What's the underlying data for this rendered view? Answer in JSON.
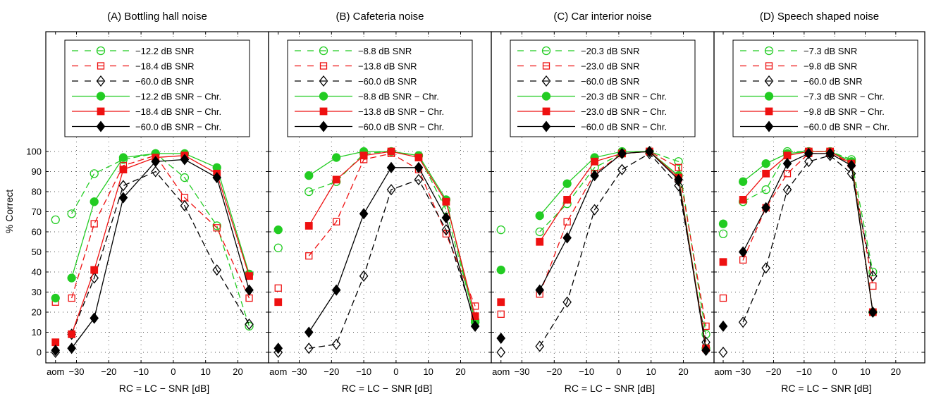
{
  "figure": {
    "ylabel": "% Correct",
    "xlabel": "RC = LC − SNR [dB]",
    "y_ticks": [
      0,
      10,
      20,
      30,
      40,
      50,
      60,
      70,
      80,
      90,
      100
    ],
    "x_ticks": [
      "aom",
      "−30",
      "−20",
      "−10",
      "0",
      "10",
      "20"
    ],
    "x_tick_values": [
      -30,
      -20,
      -10,
      0,
      10,
      20
    ],
    "ylim": [
      -3,
      103
    ],
    "xlim": [
      -39.5,
      29.5
    ],
    "aom_x": -36.5,
    "grid": "dotted"
  },
  "chart_data": [
    {
      "type": "line",
      "title": "(A) Bottling hall noise",
      "legend": [
        "−12.2 dB SNR",
        "−18.4 dB SNR",
        "−60.0 dB SNR",
        "−12.2 dB SNR − Chr.",
        "−18.4 dB SNR − Chr.",
        "−60.0 dB SNR − Chr."
      ],
      "series": [
        {
          "name": "−12.2 dB SNR",
          "color": "#22cc22",
          "marker": "circle-open",
          "dash": "dashed",
          "aom": 66,
          "x": [
            -31.5,
            -24.5,
            -15.5,
            -5.5,
            3.5,
            13.5,
            23.5
          ],
          "y": [
            69,
            89,
            96,
            99,
            87,
            63,
            13
          ]
        },
        {
          "name": "−18.4 dB SNR",
          "color": "#ee1111",
          "marker": "square-open",
          "dash": "dashed",
          "aom": 25,
          "x": [
            -31.5,
            -24.5,
            -15.5,
            -5.5,
            3.5,
            13.5,
            23.5
          ],
          "y": [
            27,
            64,
            93,
            98,
            77,
            62,
            27
          ]
        },
        {
          "name": "−60.0 dB SNR",
          "color": "#000000",
          "marker": "diamond-open",
          "dash": "dashed",
          "aom": 0,
          "x": [
            -31.5,
            -24.5,
            -15.5,
            -5.5,
            3.5,
            13.5,
            23.5
          ],
          "y": [
            9,
            37,
            83,
            90,
            73,
            41,
            14
          ]
        },
        {
          "name": "−12.2 dB SNR − Chr.",
          "color": "#22cc22",
          "marker": "circle-filled",
          "dash": "solid",
          "aom": 27,
          "x": [
            -31.5,
            -24.5,
            -15.5,
            -5.5,
            3.5,
            13.5,
            23.5
          ],
          "y": [
            37,
            75,
            97,
            99,
            99,
            92,
            39
          ]
        },
        {
          "name": "−18.4 dB SNR − Chr.",
          "color": "#ee1111",
          "marker": "square-filled",
          "dash": "solid",
          "aom": 5,
          "x": [
            -31.5,
            -24.5,
            -15.5,
            -5.5,
            3.5,
            13.5,
            23.5
          ],
          "y": [
            9,
            41,
            91,
            97,
            98,
            89,
            38
          ]
        },
        {
          "name": "−60.0 dB SNR − Chr.",
          "color": "#000000",
          "marker": "diamond-filled",
          "dash": "solid",
          "aom": 1,
          "x": [
            -31.5,
            -24.5,
            -15.5,
            -5.5,
            3.5,
            13.5,
            23.5
          ],
          "y": [
            2,
            17,
            77,
            95,
            96,
            87,
            31
          ]
        }
      ]
    },
    {
      "type": "line",
      "title": "(B) Cafeteria noise",
      "legend": [
        "−8.8 dB SNR",
        "−13.8 dB SNR",
        "−60.0 dB SNR",
        "−8.8 dB SNR − Chr.",
        "−13.8 dB SNR − Chr.",
        "−60.0 dB SNR − Chr."
      ],
      "series": [
        {
          "name": "−8.8 dB SNR",
          "color": "#22cc22",
          "marker": "circle-open",
          "dash": "dashed",
          "aom": 52,
          "x": [
            -27,
            -18.5,
            -10,
            -1.5,
            7,
            15.5,
            24.5
          ],
          "y": [
            80,
            85,
            99,
            100,
            98,
            71,
            16
          ]
        },
        {
          "name": "−13.8 dB SNR",
          "color": "#ee1111",
          "marker": "square-open",
          "dash": "dashed",
          "aom": 32,
          "x": [
            -27,
            -18.5,
            -10,
            -1.5,
            7,
            15.5,
            24.5
          ],
          "y": [
            48,
            65,
            96,
            99,
            91,
            59,
            23
          ]
        },
        {
          "name": "−60.0 dB SNR",
          "color": "#000000",
          "marker": "diamond-open",
          "dash": "dashed",
          "aom": 0,
          "x": [
            -27,
            -18.5,
            -10,
            -1.5,
            7,
            15.5,
            24.5
          ],
          "y": [
            2,
            4,
            38,
            81,
            86,
            61,
            15
          ]
        },
        {
          "name": "−8.8 dB SNR − Chr.",
          "color": "#22cc22",
          "marker": "circle-filled",
          "dash": "solid",
          "aom": 61,
          "x": [
            -27,
            -18.5,
            -10,
            -1.5,
            7,
            15.5,
            24.5
          ],
          "y": [
            88,
            97,
            100,
            100,
            98,
            76,
            15
          ]
        },
        {
          "name": "−13.8 dB SNR − Chr.",
          "color": "#ee1111",
          "marker": "square-filled",
          "dash": "solid",
          "aom": 25,
          "x": [
            -27,
            -18.5,
            -10,
            -1.5,
            7,
            15.5,
            24.5
          ],
          "y": [
            63,
            86,
            98,
            100,
            97,
            75,
            18
          ]
        },
        {
          "name": "−60.0 dB SNR − Chr.",
          "color": "#000000",
          "marker": "diamond-filled",
          "dash": "solid",
          "aom": 2,
          "x": [
            -27,
            -18.5,
            -10,
            -1.5,
            7,
            15.5,
            24.5
          ],
          "y": [
            10,
            31,
            69,
            92,
            92,
            67,
            13
          ]
        }
      ]
    },
    {
      "type": "line",
      "title": "(C) Car interior noise",
      "legend": [
        "−20.3 dB SNR",
        "−23.0 dB SNR",
        "−60.0 dB SNR",
        "−20.3 dB SNR − Chr.",
        "−23.0 dB SNR − Chr.",
        "−60.0 dB SNR − Chr."
      ],
      "series": [
        {
          "name": "−20.3 dB SNR",
          "color": "#22cc22",
          "marker": "circle-open",
          "dash": "dashed",
          "aom": 61,
          "x": [
            -24.5,
            -16,
            -7.5,
            1,
            9.5,
            18.5,
            27
          ],
          "y": [
            60,
            74,
            92,
            99,
            100,
            95,
            9
          ]
        },
        {
          "name": "−23.0 dB SNR",
          "color": "#ee1111",
          "marker": "square-open",
          "dash": "dashed",
          "aom": 19,
          "x": [
            -24.5,
            -16,
            -7.5,
            1,
            9.5,
            18.5,
            27
          ],
          "y": [
            29,
            65,
            89,
            99,
            100,
            92,
            13
          ]
        },
        {
          "name": "−60.0 dB SNR",
          "color": "#000000",
          "marker": "diamond-open",
          "dash": "dashed",
          "aom": 0,
          "x": [
            -24.5,
            -16,
            -7.5,
            1,
            9.5,
            18.5,
            27
          ],
          "y": [
            3,
            25,
            71,
            91,
            99,
            83,
            5
          ]
        },
        {
          "name": "−20.3 dB SNR − Chr.",
          "color": "#22cc22",
          "marker": "circle-filled",
          "dash": "solid",
          "aom": 41,
          "x": [
            -24.5,
            -16,
            -7.5,
            1,
            9.5,
            18.5,
            27
          ],
          "y": [
            68,
            84,
            97,
            100,
            100,
            88,
            2
          ]
        },
        {
          "name": "−23.0 dB SNR − Chr.",
          "color": "#ee1111",
          "marker": "square-filled",
          "dash": "solid",
          "aom": 25,
          "x": [
            -24.5,
            -16,
            -7.5,
            1,
            9.5,
            18.5,
            27
          ],
          "y": [
            55,
            76,
            95,
            99,
            100,
            87,
            2
          ]
        },
        {
          "name": "−60.0 dB SNR − Chr.",
          "color": "#000000",
          "marker": "diamond-filled",
          "dash": "solid",
          "aom": 7,
          "x": [
            -24.5,
            -16,
            -7.5,
            1,
            9.5,
            18.5,
            27
          ],
          "y": [
            31,
            57,
            88,
            99,
            100,
            86,
            1
          ]
        }
      ]
    },
    {
      "type": "line",
      "title": "(D) Speech shaped noise",
      "legend": [
        "−7.3 dB SNR",
        "−9.8 dB SNR",
        "−60.0 dB SNR",
        "−7.3 dB SNR − Chr.",
        "−9.8 dB SNR − Chr.",
        "−60.0 dB SNR − Chr."
      ],
      "series": [
        {
          "name": "−7.3 dB SNR",
          "color": "#22cc22",
          "marker": "circle-open",
          "dash": "dashed",
          "aom": 59,
          "x": [
            -30,
            -22.5,
            -15.5,
            -8.5,
            -1.5,
            5.5,
            12.5
          ],
          "y": [
            75,
            81,
            100,
            100,
            100,
            96,
            40
          ]
        },
        {
          "name": "−9.8 dB SNR",
          "color": "#ee1111",
          "marker": "square-open",
          "dash": "dashed",
          "aom": 27,
          "x": [
            -30,
            -22.5,
            -15.5,
            -8.5,
            -1.5,
            5.5,
            12.5
          ],
          "y": [
            46,
            72,
            89,
            99,
            99,
            94,
            33
          ]
        },
        {
          "name": "−60.0 dB SNR",
          "color": "#000000",
          "marker": "diamond-open",
          "dash": "dashed",
          "aom": 0,
          "x": [
            -30,
            -22.5,
            -15.5,
            -8.5,
            -1.5,
            5.5,
            12.5
          ],
          "y": [
            15,
            42,
            81,
            95,
            98,
            89,
            38
          ]
        },
        {
          "name": "−7.3 dB SNR − Chr.",
          "color": "#22cc22",
          "marker": "circle-filled",
          "dash": "solid",
          "aom": 64,
          "x": [
            -30,
            -22.5,
            -15.5,
            -8.5,
            -1.5,
            5.5,
            12.5
          ],
          "y": [
            85,
            94,
            99,
            100,
            100,
            95,
            20
          ]
        },
        {
          "name": "−9.8 dB SNR − Chr.",
          "color": "#ee1111",
          "marker": "square-filled",
          "dash": "solid",
          "aom": 45,
          "x": [
            -30,
            -22.5,
            -15.5,
            -8.5,
            -1.5,
            5.5,
            12.5
          ],
          "y": [
            76,
            89,
            98,
            100,
            100,
            94,
            20
          ]
        },
        {
          "name": "−60.0 dB SNR − Chr.",
          "color": "#000000",
          "marker": "diamond-filled",
          "dash": "solid",
          "aom": 13,
          "x": [
            -30,
            -22.5,
            -15.5,
            -8.5,
            -1.5,
            5.5,
            12.5
          ],
          "y": [
            50,
            72,
            94,
            99,
            99,
            93,
            20
          ]
        }
      ]
    }
  ]
}
